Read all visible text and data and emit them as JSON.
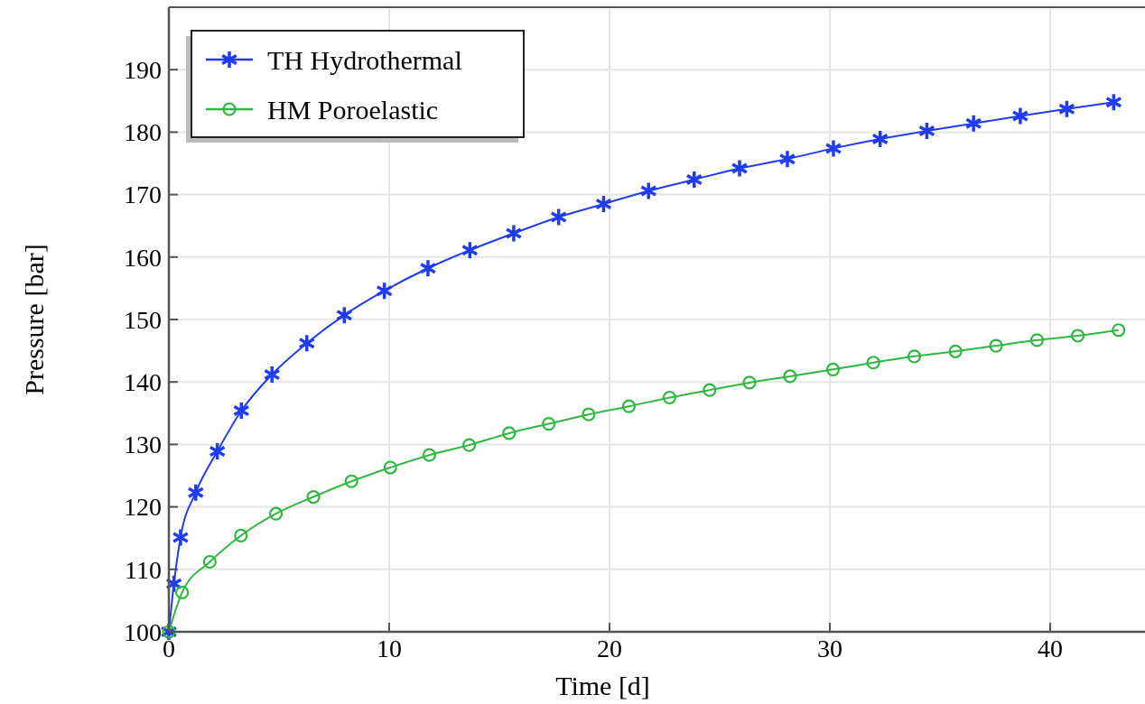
{
  "chart_data": {
    "type": "line",
    "xlabel": "Time [d]",
    "ylabel": "Pressure [bar]",
    "xlim": [
      0,
      44.3
    ],
    "xticks": [
      0,
      10,
      20,
      30,
      40
    ],
    "ylim": [
      100,
      200
    ],
    "yticks": [
      100,
      110,
      120,
      130,
      140,
      150,
      160,
      170,
      180,
      190
    ],
    "grid": true,
    "legend": "top left",
    "line_style": "solid",
    "series": [
      {
        "name": "TH Hydrothermal",
        "color": "#1f3cf0",
        "marker": "cross",
        "x": [
          0,
          0.23,
          0.53,
          1.22,
          2.2,
          3.29,
          4.68,
          6.26,
          7.96,
          9.78,
          11.76,
          13.66,
          15.65,
          17.69,
          19.73,
          21.77,
          23.84,
          25.9,
          28.07,
          30.16,
          32.28,
          34.4,
          36.52,
          38.64,
          40.75,
          42.88
        ],
        "values": [
          100,
          107.7,
          115.1,
          122.3,
          128.9,
          135.4,
          141.2,
          146.2,
          150.7,
          154.6,
          158.2,
          161.1,
          163.8,
          166.4,
          168.5,
          170.6,
          172.4,
          174.2,
          175.7,
          177.4,
          178.9,
          180.2,
          181.4,
          182.6,
          183.7,
          184.8
        ]
      },
      {
        "name": "HM Poroelastic",
        "color": "#2fb83f",
        "marker": "circle",
        "x": [
          0,
          0.6,
          1.86,
          3.27,
          4.86,
          6.56,
          8.29,
          10.05,
          11.82,
          13.63,
          15.44,
          17.24,
          19.05,
          20.88,
          22.72,
          24.54,
          26.35,
          28.19,
          30.14,
          31.97,
          33.83,
          35.7,
          37.54,
          39.4,
          41.25,
          43.1
        ],
        "values": [
          100,
          106.3,
          111.2,
          115.4,
          118.9,
          121.6,
          124.1,
          126.3,
          128.3,
          129.9,
          131.8,
          133.3,
          134.8,
          136.1,
          137.5,
          138.7,
          139.9,
          140.9,
          142.0,
          143.1,
          144.1,
          144.9,
          145.8,
          146.7,
          147.4,
          148.3
        ]
      }
    ]
  }
}
